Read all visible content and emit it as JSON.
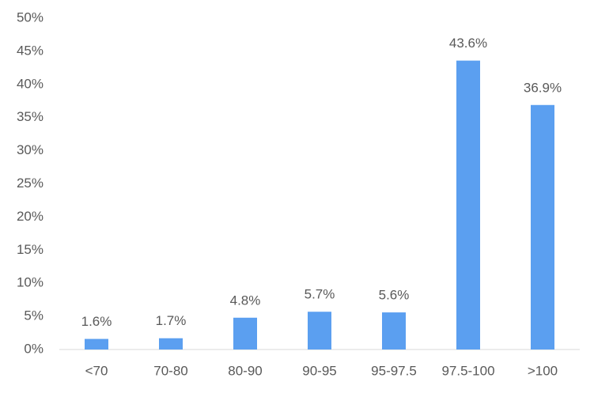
{
  "chart_data": {
    "type": "bar",
    "categories": [
      "<70",
      "70-80",
      "80-90",
      "90-95",
      "95-97.5",
      "97.5-100",
      ">100"
    ],
    "values": [
      1.6,
      1.7,
      4.8,
      5.7,
      5.6,
      43.6,
      36.9
    ],
    "value_labels": [
      "1.6%",
      "1.7%",
      "4.8%",
      "5.7%",
      "5.6%",
      "43.6%",
      "36.9%"
    ],
    "color": "#5b9ff0",
    "ylim": [
      0,
      50
    ],
    "yticks": [
      {
        "value": 0,
        "label": "0%"
      },
      {
        "value": 5,
        "label": "5%"
      },
      {
        "value": 10,
        "label": "10%"
      },
      {
        "value": 15,
        "label": "15%"
      },
      {
        "value": 20,
        "label": "20%"
      },
      {
        "value": 25,
        "label": "25%"
      },
      {
        "value": 30,
        "label": "30%"
      },
      {
        "value": 35,
        "label": "35%"
      },
      {
        "value": 40,
        "label": "40%"
      },
      {
        "value": 45,
        "label": "45%"
      },
      {
        "value": 50,
        "label": "50%"
      }
    ],
    "grid": false
  }
}
